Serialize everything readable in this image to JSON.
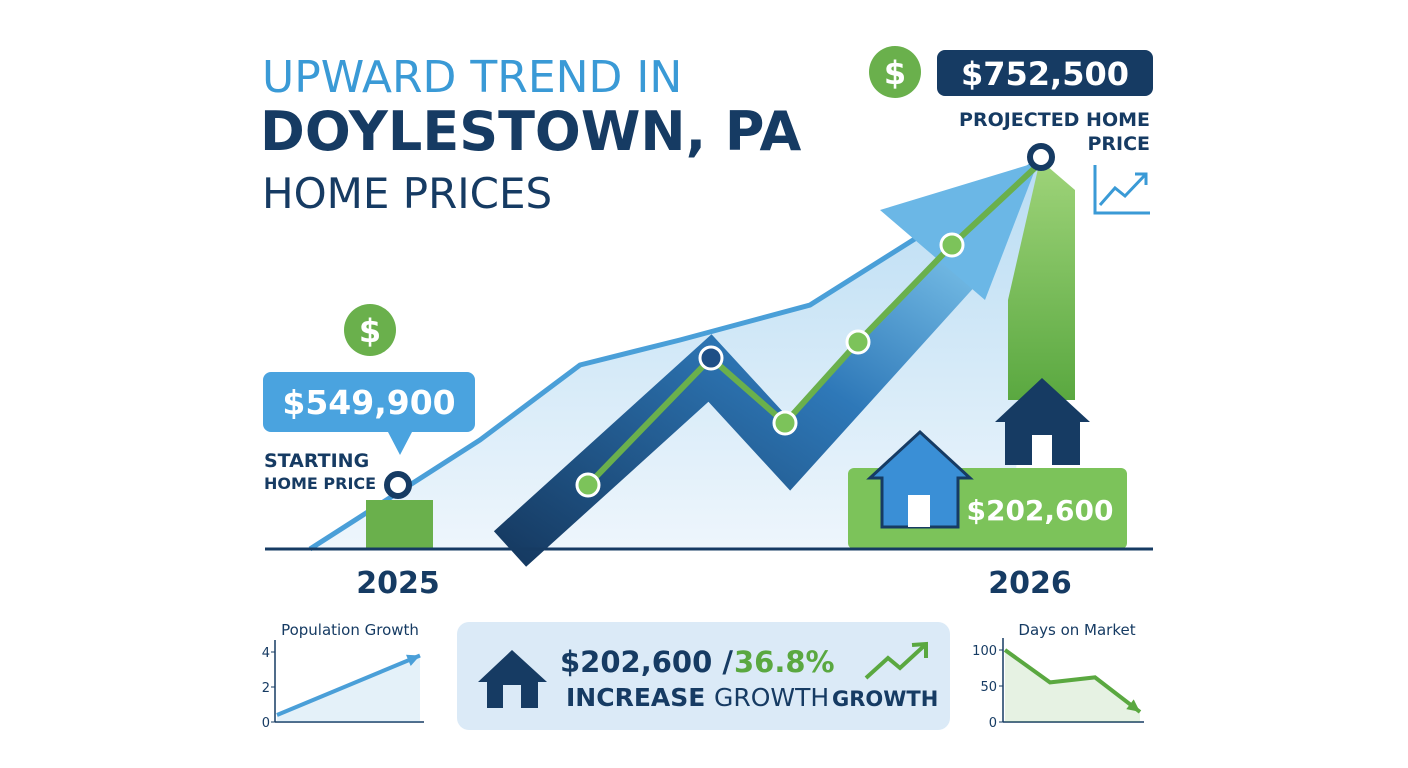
{
  "title": {
    "line1": "UPWARD TREND IN",
    "line2": "DOYLESTOWN, PA",
    "line3": "HOME PRICES"
  },
  "currency_symbol": "$",
  "start": {
    "price": "$549,900",
    "label_line1": "STARTING",
    "label_line2": "HOME PRICE",
    "year": "2025"
  },
  "projected": {
    "price": "$752,500",
    "label_line1": "PROJECTED HOME",
    "label_line2": "PRICE",
    "year": "2026"
  },
  "increase_badge": "$202,600",
  "summary": {
    "amount": "$202,600 /",
    "percent": "36.8%",
    "word1": "INCREASE",
    "word2": "GROWTH",
    "word3": "GROWTH"
  },
  "mini_charts": [
    {
      "type": "line",
      "title": "Population Growth",
      "color": "#4a9fd8",
      "values": [
        0.4,
        3.8
      ],
      "ylim": [
        0,
        4
      ],
      "yticks": [
        0,
        2,
        4
      ]
    },
    {
      "type": "line",
      "title": "Days on Market",
      "color": "#5aa840",
      "values": [
        100,
        55,
        62,
        14
      ],
      "ylim": [
        0,
        100
      ],
      "yticks": [
        0,
        50,
        100
      ]
    }
  ]
}
